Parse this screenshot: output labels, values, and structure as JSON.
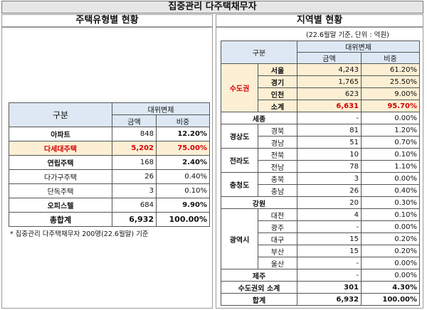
{
  "title": "집중관리 다주택채무자",
  "left": {
    "heading": "주택유형별 현황",
    "col_group": "구분",
    "col_main": "대위변제",
    "col_amount": "금액",
    "col_ratio": "비중",
    "rows": [
      {
        "name": "아파트",
        "amount": "848",
        "ratio": "12.20%"
      },
      {
        "name": "다세대주택",
        "amount": "5,202",
        "ratio": "75.00%"
      },
      {
        "name": "연립주택",
        "amount": "168",
        "ratio": "2.40%"
      },
      {
        "name": "다가구주택",
        "amount": "26",
        "ratio": "0.40%"
      },
      {
        "name": "단독주택",
        "amount": "3",
        "ratio": "0.10%"
      },
      {
        "name": "오피스텔",
        "amount": "684",
        "ratio": "9.90%"
      }
    ],
    "total": {
      "name": "총합계",
      "amount": "6,932",
      "ratio": "100.00%"
    },
    "note": "* 집중관리 다주택채무자 200명(22.6월말) 기준"
  },
  "right": {
    "heading": "지역별 현황",
    "unit": "(22.6월말 기준, 단위 : 억원)",
    "col_group": "구분",
    "col_main": "대위변제",
    "col_amount": "금액",
    "col_ratio": "비중",
    "capital": {
      "label": "수도권",
      "rows": [
        {
          "name": "서울",
          "amount": "4,243",
          "ratio": "61.20%"
        },
        {
          "name": "경기",
          "amount": "1,765",
          "ratio": "25.50%"
        },
        {
          "name": "인천",
          "amount": "623",
          "ratio": "9.00%"
        },
        {
          "name": "소계",
          "amount": "6,631",
          "ratio": "95.70%"
        }
      ]
    },
    "sejong": {
      "name": "세종",
      "amount": "-",
      "ratio": "0.00%"
    },
    "gyeongsang": {
      "label": "경상도",
      "rows": [
        {
          "name": "경북",
          "amount": "81",
          "ratio": "1.20%"
        },
        {
          "name": "경남",
          "amount": "51",
          "ratio": "0.70%"
        }
      ]
    },
    "jeolla": {
      "label": "전라도",
      "rows": [
        {
          "name": "전북",
          "amount": "10",
          "ratio": "0.10%"
        },
        {
          "name": "전남",
          "amount": "78",
          "ratio": "1.10%"
        }
      ]
    },
    "chungcheong": {
      "label": "충청도",
      "rows": [
        {
          "name": "충북",
          "amount": "3",
          "ratio": "0.00%"
        },
        {
          "name": "충남",
          "amount": "26",
          "ratio": "0.40%"
        }
      ]
    },
    "gangwon": {
      "name": "강원",
      "amount": "20",
      "ratio": "0.30%"
    },
    "metro": {
      "label": "광역시",
      "rows": [
        {
          "name": "대전",
          "amount": "4",
          "ratio": "0.10%"
        },
        {
          "name": "광주",
          "amount": "-",
          "ratio": "0.00%"
        },
        {
          "name": "대구",
          "amount": "15",
          "ratio": "0.20%"
        },
        {
          "name": "부산",
          "amount": "15",
          "ratio": "0.20%"
        },
        {
          "name": "울산",
          "amount": "-",
          "ratio": "0.00%"
        }
      ]
    },
    "jeju": {
      "name": "제주",
      "amount": "-",
      "ratio": "0.00%"
    },
    "non_capital": {
      "name": "수도권외 소계",
      "amount": "301",
      "ratio": "4.30%"
    },
    "total": {
      "name": "합계",
      "amount": "6,932",
      "ratio": "100.00%"
    }
  },
  "colors": {
    "highlight_bg": "#fdefd4",
    "highlight_text": "#d40000",
    "header_bg": "#dde8f4"
  }
}
